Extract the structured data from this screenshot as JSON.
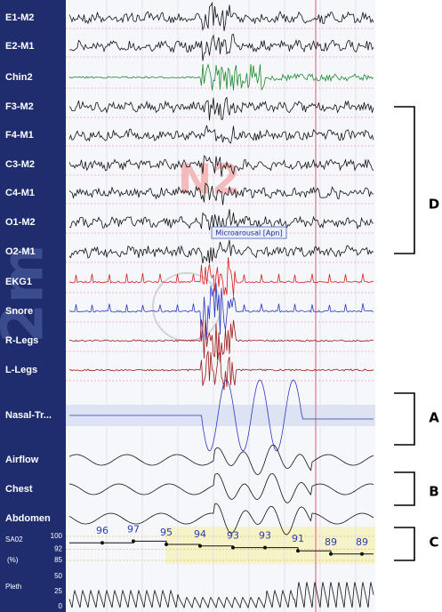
{
  "sidebar": {
    "channels": [
      "E1-M2",
      "E2-M1",
      "Chin2",
      "F3-M2",
      "F4-M1",
      "C3-M2",
      "C4-M1",
      "O1-M2",
      "O2-M1",
      "EKG1",
      "Snore",
      "R-Legs",
      "L-Legs",
      "Nasal-Tr...",
      "Airflow",
      "Chest",
      "Abdomen"
    ],
    "scale_label": "2m"
  },
  "overlays": {
    "stage": "N2",
    "event": "Microarousal [Apn]"
  },
  "spo2": {
    "channel": "SA02",
    "unit": "(%)",
    "ticks": [
      100,
      92,
      85
    ],
    "readings": [
      96,
      97,
      95,
      94,
      93,
      93,
      91,
      89,
      89
    ]
  },
  "pleth": {
    "channel": "Pleth",
    "ticks": [
      50,
      25,
      0
    ]
  },
  "brackets": [
    "D",
    "A",
    "B",
    "C"
  ]
}
